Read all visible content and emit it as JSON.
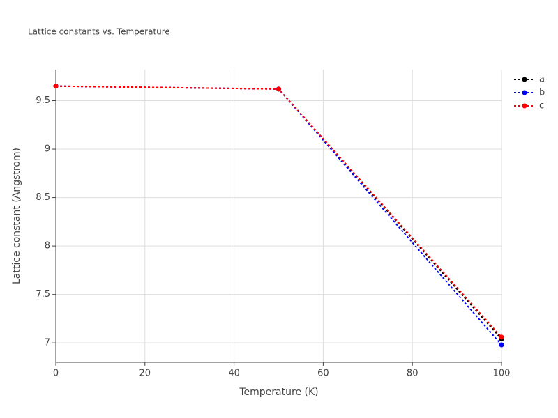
{
  "chart_data": {
    "type": "line",
    "title": "Lattice constants vs. Temperature",
    "x_label": "Temperature (K)",
    "y_label": "Lattice constant (Angstrom)",
    "x": [
      0,
      50,
      100
    ],
    "series": [
      {
        "name": "a",
        "color": "#000000",
        "values": [
          9.65,
          9.62,
          7.04
        ]
      },
      {
        "name": "b",
        "color": "#0000ff",
        "values": [
          9.65,
          9.62,
          6.98
        ]
      },
      {
        "name": "c",
        "color": "#ff0000",
        "values": [
          9.65,
          9.62,
          7.06
        ]
      }
    ],
    "xlim": [
      0,
      100
    ],
    "xticks": [
      0,
      20,
      40,
      60,
      80,
      100
    ],
    "ylim": [
      6.8,
      9.82
    ],
    "yticks": [
      7,
      7.5,
      8,
      8.5,
      9,
      9.5
    ],
    "grid": true,
    "legend": "top-right"
  }
}
